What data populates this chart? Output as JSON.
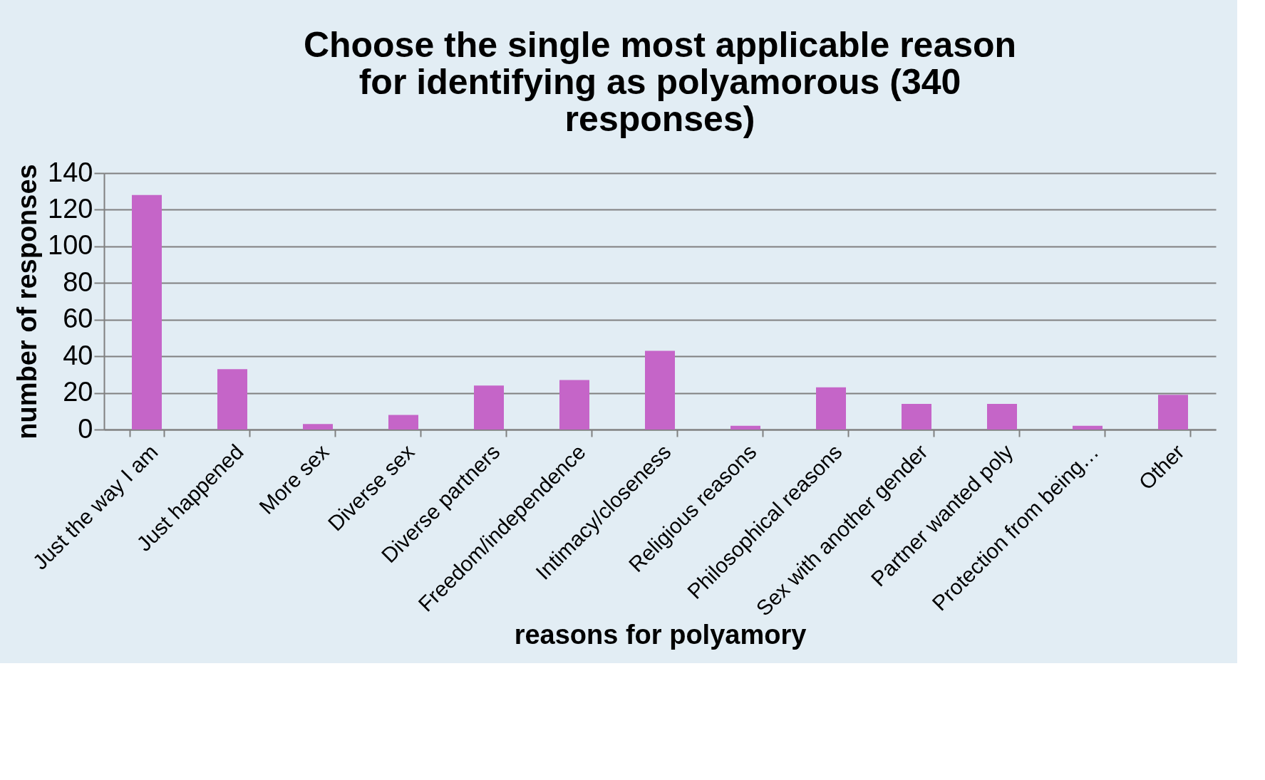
{
  "chart_data": {
    "type": "bar",
    "title": [
      "Choose the single most applicable reason",
      "for identifying as polyamorous (340",
      "responses)"
    ],
    "xlabel": "reasons for polyamory",
    "ylabel": "number of responses",
    "categories": [
      "Just the way I am",
      "Just happened",
      "More sex",
      "Diverse sex",
      "Diverse partners",
      "Freedom/independence",
      "Intimacy/closeness",
      "Religious reasons",
      "Philosophical reasons",
      "Sex with another gender",
      "Partner wanted poly",
      "Protection from being…",
      "Other"
    ],
    "values": [
      128,
      33,
      3,
      8,
      24,
      27,
      43,
      2,
      23,
      14,
      14,
      2,
      19
    ],
    "color": "#c565c8",
    "ylim": [
      0,
      140
    ],
    "yticks": [
      0,
      20,
      40,
      60,
      80,
      100,
      120,
      140
    ],
    "grid": "y"
  }
}
